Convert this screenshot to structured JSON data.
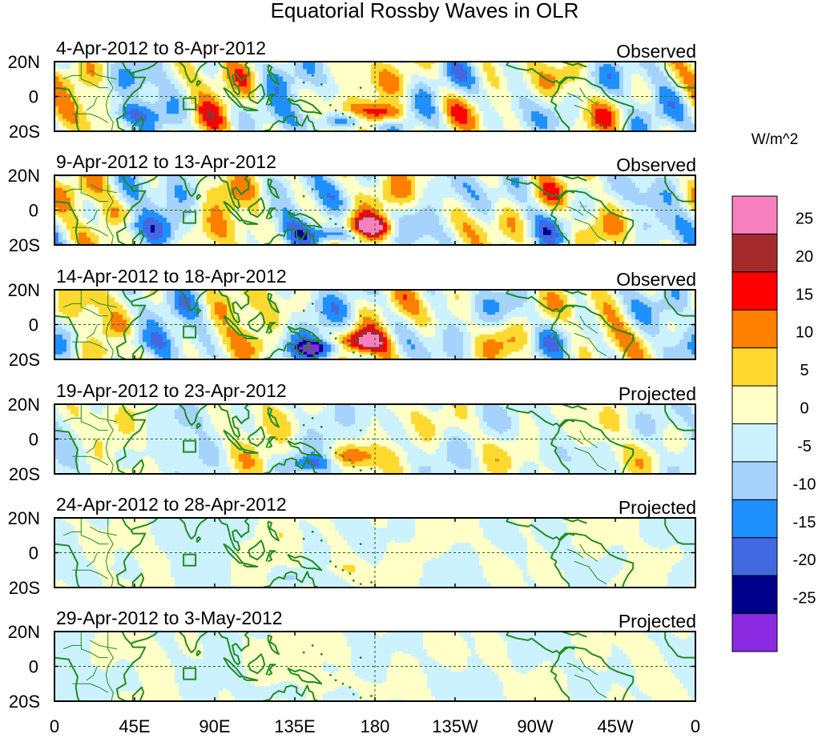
{
  "title": "Equatorial Rossby Waves in OLR",
  "colorbar": {
    "units": "W/m^2",
    "levels": [
      25,
      20,
      15,
      10,
      5,
      0,
      -5,
      -10,
      -15,
      -20,
      -25
    ],
    "colors": [
      "#f781bf",
      "#a52a2a",
      "#ff0000",
      "#ff7f00",
      "#ffd92f",
      "#ffffc8",
      "#ccf2ff",
      "#a6d3fc",
      "#1e90ff",
      "#4169e1",
      "#00008b",
      "#8a2be2"
    ]
  },
  "map": {
    "land_color": "#228b22",
    "lat_labels": [
      "20N",
      "0",
      "20S"
    ],
    "lon_labels": [
      "0",
      "45E",
      "90E",
      "135E",
      "180",
      "135W",
      "90W",
      "45W",
      "0"
    ]
  },
  "panels": [
    {
      "dates": "4-Apr-2012 to 8-Apr-2012",
      "status": "Observed",
      "amp": 1.0,
      "phase": 0.0
    },
    {
      "dates": "9-Apr-2012 to 13-Apr-2012",
      "status": "Observed",
      "amp": 1.0,
      "phase": 0.6
    },
    {
      "dates": "14-Apr-2012 to 18-Apr-2012",
      "status": "Observed",
      "amp": 0.95,
      "phase": 1.2
    },
    {
      "dates": "19-Apr-2012 to 23-Apr-2012",
      "status": "Projected",
      "amp": 0.55,
      "phase": 1.8
    },
    {
      "dates": "24-Apr-2012 to 28-Apr-2012",
      "status": "Projected",
      "amp": 0.28,
      "phase": 2.4
    },
    {
      "dates": "29-Apr-2012 to 3-May-2012",
      "status": "Projected",
      "amp": 0.18,
      "phase": 3.0
    }
  ]
}
